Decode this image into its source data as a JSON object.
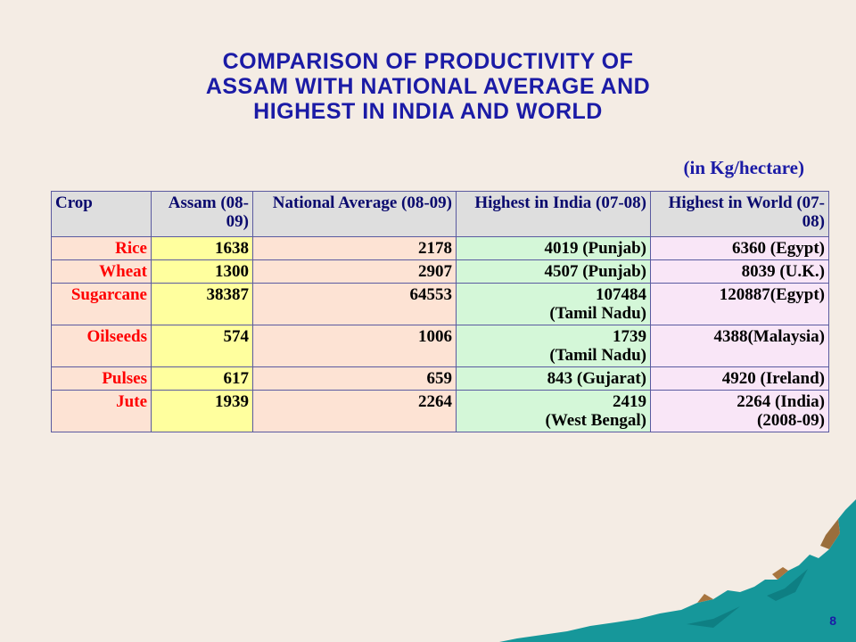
{
  "title": {
    "line1": "COMPARISON  OF PRODUCTIVITY OF",
    "line2": "ASSAM WITH NATIONAL AVERAGE AND",
    "line3": "HIGHEST IN INDIA AND WORLD"
  },
  "unit_note": "(in Kg/hectare)",
  "table": {
    "headers": {
      "crop": "Crop",
      "assam": "Assam (08-09)",
      "national": "National Average (08-09)",
      "india": "Highest in India (07-08)",
      "world": "Highest in World (07-08)"
    },
    "rows": [
      {
        "crop": "Rice",
        "assam": "1638",
        "national": "2178",
        "india_value": "4019 (Punjab)",
        "india_place": "",
        "world_value": "6360 (Egypt)",
        "world_note": ""
      },
      {
        "crop": "Wheat",
        "assam": "1300",
        "national": "2907",
        "india_value": "4507 (Punjab)",
        "india_place": "",
        "world_value": "8039 (U.K.)",
        "world_note": ""
      },
      {
        "crop": "Sugarcane",
        "assam": "38387",
        "national": "64553",
        "india_value": "107484",
        "india_place": "(Tamil Nadu)",
        "world_value": "120887(Egypt)",
        "world_note": ""
      },
      {
        "crop": "Oilseeds",
        "assam": "574",
        "national": "1006",
        "india_value": "1739",
        "india_place": "(Tamil Nadu)",
        "world_value": "4388(Malaysia)",
        "world_note": ""
      },
      {
        "crop": "Pulses",
        "assam": "617",
        "national": "659",
        "india_value": "843 (Gujarat)",
        "india_place": "",
        "world_value": "4920 (Ireland)",
        "world_note": ""
      },
      {
        "crop": "Jute",
        "assam": "1939",
        "national": "2264",
        "india_value": "2419",
        "india_place": "(West Bengal)",
        "world_value": "2264 (India)",
        "world_note": "(2008-09)"
      }
    ]
  },
  "page_number": "8",
  "colors": {
    "title": "#1b1ba6",
    "crop_text": "#ff0000",
    "background": "#f4ece4",
    "mountain": "#16979a"
  }
}
